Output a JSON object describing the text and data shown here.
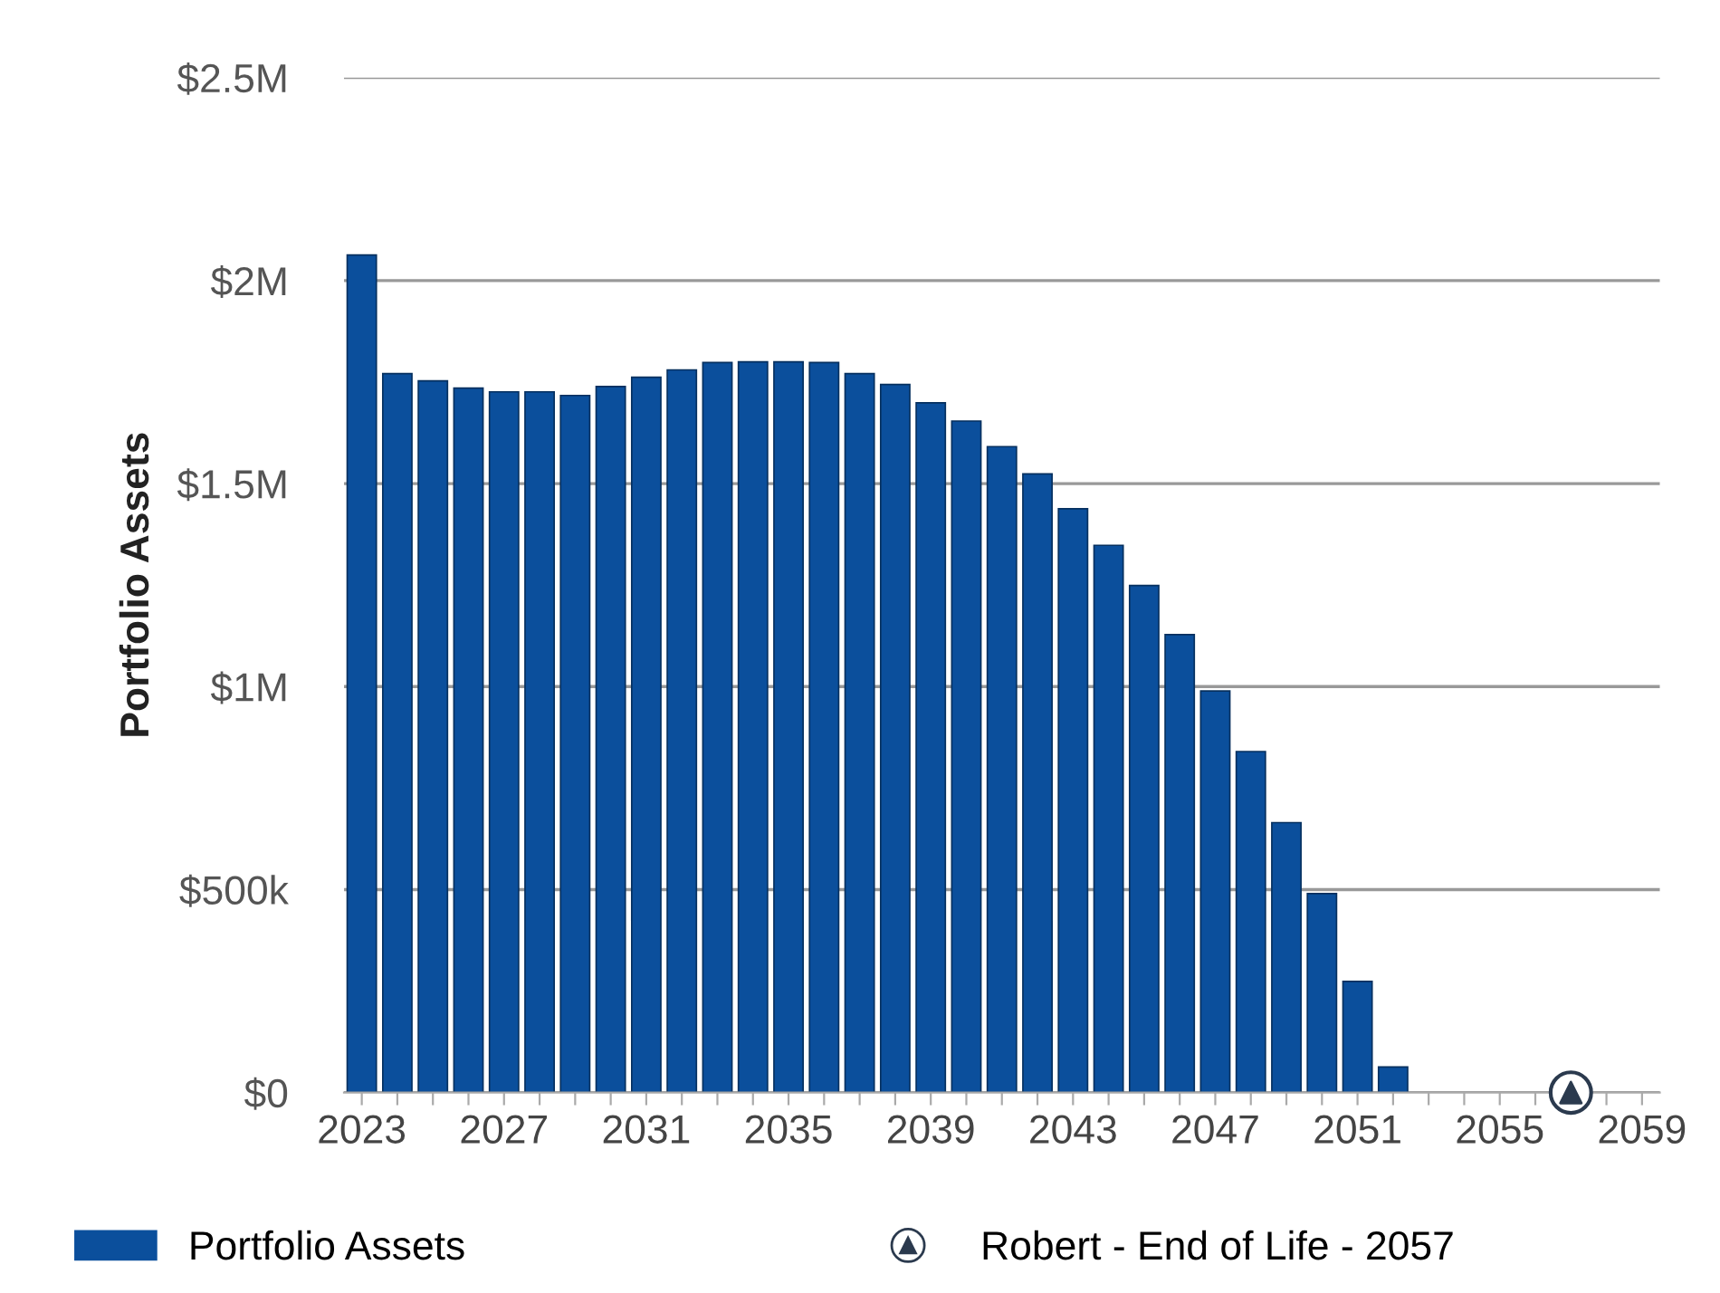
{
  "chart_data": {
    "type": "bar",
    "ylabel": "Portfolio Assets",
    "x": [
      2023,
      2024,
      2025,
      2026,
      2027,
      2028,
      2029,
      2030,
      2031,
      2032,
      2033,
      2034,
      2035,
      2036,
      2037,
      2038,
      2039,
      2040,
      2041,
      2042,
      2043,
      2044,
      2045,
      2046,
      2047,
      2048,
      2049,
      2050,
      2051,
      2052
    ],
    "series": [
      {
        "name": "Portfolio Assets",
        "color": "#0b4f9c",
        "values": [
          2063000,
          1771000,
          1753000,
          1735000,
          1726000,
          1726000,
          1717000,
          1739000,
          1762000,
          1780000,
          1798000,
          1800000,
          1800000,
          1798000,
          1771000,
          1744000,
          1699000,
          1654000,
          1591000,
          1524000,
          1438000,
          1348000,
          1249000,
          1128000,
          989000,
          840000,
          665000,
          490000,
          274000,
          63000
        ]
      },
      {
        "name": "Robert - End of Life - 2057",
        "type": "scatter",
        "x": [
          2057
        ],
        "values": [
          0
        ],
        "color": "#2b3a4e",
        "marker": "triangle"
      }
    ],
    "xlim": [
      2022.5,
      2059.5
    ],
    "xticks": [
      2023,
      {
        "value": 2024,
        "label": null
      },
      {
        "value": 2025,
        "label": null
      },
      {
        "value": 2026,
        "label": null
      },
      2027,
      {
        "value": 2028,
        "label": null
      },
      {
        "value": 2029,
        "label": null
      },
      {
        "value": 2030,
        "label": null
      },
      2031,
      {
        "value": 2032,
        "label": null
      },
      {
        "value": 2033,
        "label": null
      },
      {
        "value": 2034,
        "label": null
      },
      2035,
      {
        "value": 2036,
        "label": null
      },
      {
        "value": 2037,
        "label": null
      },
      {
        "value": 2038,
        "label": null
      },
      2039,
      {
        "value": 2040,
        "label": null
      },
      {
        "value": 2041,
        "label": null
      },
      {
        "value": 2042,
        "label": null
      },
      2043,
      {
        "value": 2044,
        "label": null
      },
      {
        "value": 2045,
        "label": null
      },
      {
        "value": 2046,
        "label": null
      },
      2047,
      {
        "value": 2048,
        "label": null
      },
      {
        "value": 2049,
        "label": null
      },
      {
        "value": 2050,
        "label": null
      },
      2051,
      {
        "value": 2052,
        "label": null
      },
      {
        "value": 2053,
        "label": null
      },
      {
        "value": 2054,
        "label": null
      },
      2055,
      {
        "value": 2056,
        "label": null
      },
      {
        "value": 2057,
        "label": null
      },
      {
        "value": 2058,
        "label": null
      },
      2059
    ],
    "ylim": [
      0,
      2500000
    ],
    "yticks": [
      {
        "value": 0,
        "label": "$0"
      },
      {
        "value": 500000,
        "label": "$500k"
      },
      {
        "value": 1000000,
        "label": "$1M"
      },
      {
        "value": 1500000,
        "label": "$1.5M"
      },
      {
        "value": 2000000,
        "label": "$2M"
      },
      {
        "value": 2500000,
        "label": "$2.5M"
      }
    ],
    "grid": "y",
    "legend": "bottom"
  }
}
